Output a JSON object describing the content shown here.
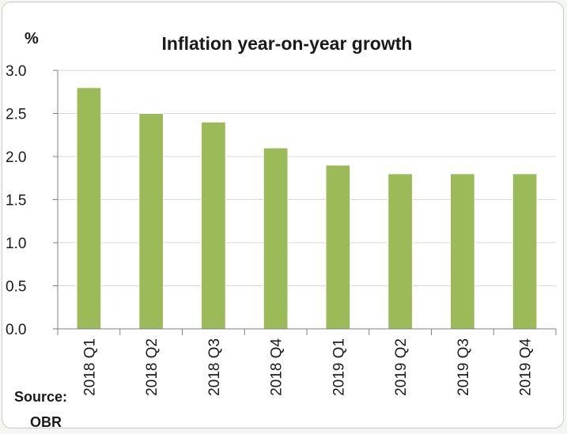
{
  "chart_data": {
    "type": "bar",
    "title": "Inflation year-on-year growth",
    "ylabel": "%",
    "xlabel": "",
    "categories": [
      "2018 Q1",
      "2018 Q2",
      "2018 Q3",
      "2018 Q4",
      "2019 Q1",
      "2019 Q2",
      "2019 Q3",
      "2019 Q4"
    ],
    "values": [
      2.8,
      2.5,
      2.4,
      2.1,
      1.9,
      1.8,
      1.8,
      1.8
    ],
    "ylim": [
      0,
      3.0
    ],
    "yticks": [
      "0.0",
      "0.5",
      "1.0",
      "1.5",
      "2.0",
      "2.5",
      "3.0"
    ],
    "grid": true,
    "legend": "none",
    "bar_color": "#9bbb59",
    "grid_color": "#d9d9d9"
  },
  "source": {
    "line1": "Source:",
    "line2": "OBR"
  }
}
